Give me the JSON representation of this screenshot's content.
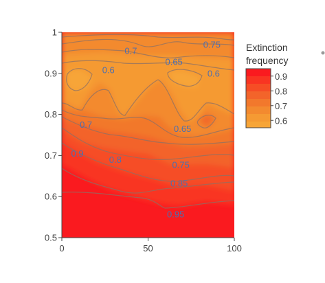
{
  "chart_data": {
    "type": "contour",
    "x_range": [
      0,
      100
    ],
    "y_range": [
      0.5,
      1
    ],
    "x_ticks": [
      0,
      50,
      100
    ],
    "y_ticks": [
      0.5,
      0.6,
      0.7,
      0.8,
      0.9,
      1
    ],
    "x_tick_labels": [
      "0",
      "50",
      "100"
    ],
    "y_tick_labels": [
      "0.5",
      "0.6",
      "0.7",
      "0.8",
      "0.9",
      "1"
    ],
    "colorbar": {
      "title_lines": [
        "Extinction",
        "frequency"
      ],
      "ticks": [
        "0.9",
        "0.8",
        "0.7",
        "0.6"
      ],
      "range": [
        0.55,
        0.95
      ]
    },
    "contour_labels": [
      {
        "text": "0.75",
        "x": 87,
        "y": 0.97
      },
      {
        "text": "0.7",
        "x": 40,
        "y": 0.955
      },
      {
        "text": "0.65",
        "x": 65,
        "y": 0.928
      },
      {
        "text": "0.6",
        "x": 27,
        "y": 0.908
      },
      {
        "text": "0.6",
        "x": 88,
        "y": 0.9
      },
      {
        "text": "0.7",
        "x": 14,
        "y": 0.775
      },
      {
        "text": "0.65",
        "x": 70,
        "y": 0.765
      },
      {
        "text": "0.9",
        "x": 9,
        "y": 0.705
      },
      {
        "text": "0.8",
        "x": 31,
        "y": 0.69
      },
      {
        "text": "0.75",
        "x": 69,
        "y": 0.677
      },
      {
        "text": "0.85",
        "x": 68,
        "y": 0.632
      },
      {
        "text": "0.95",
        "x": 66,
        "y": 0.557
      }
    ]
  }
}
